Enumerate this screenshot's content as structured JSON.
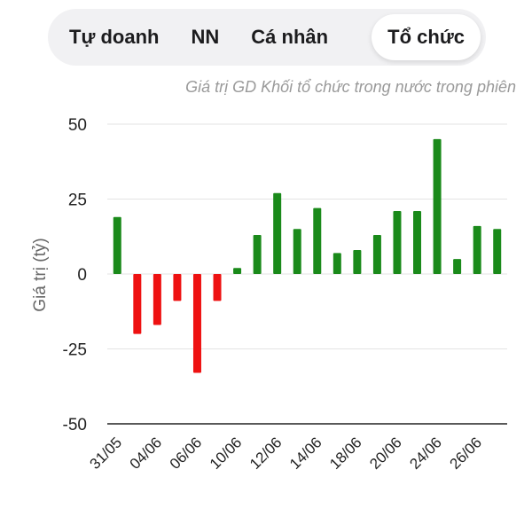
{
  "tabs": [
    {
      "label": "Tự doanh",
      "active": false
    },
    {
      "label": "NN",
      "active": false
    },
    {
      "label": "Cá nhân",
      "active": false
    },
    {
      "label": "Tổ chức",
      "active": true
    }
  ],
  "chart_data": {
    "type": "bar",
    "subtitle": "Giá trị GD Khối tổ chức trong nước trong phiên",
    "ylabel": "Giá trị (tỷ)",
    "xlabel": "",
    "ylim": [
      -50,
      50
    ],
    "yticks": [
      50,
      25,
      0,
      -25,
      -50
    ],
    "grid": true,
    "colors": {
      "positive": "#1a8a1a",
      "negative": "#ee1111"
    },
    "categories": [
      "31/05",
      "",
      "04/06",
      "",
      "06/06",
      "",
      "10/06",
      "",
      "12/06",
      "",
      "14/06",
      "",
      "18/06",
      "",
      "20/06",
      "",
      "24/06",
      "",
      "26/06",
      ""
    ],
    "tick_labels": [
      "31/05",
      "04/06",
      "06/06",
      "10/06",
      "12/06",
      "14/06",
      "18/06",
      "20/06",
      "24/06",
      "26/06"
    ],
    "values": [
      19,
      -20,
      -17,
      -9,
      -33,
      -9,
      2,
      13,
      27,
      15,
      22,
      7,
      8,
      13,
      21,
      21,
      45,
      5,
      16,
      15
    ]
  }
}
